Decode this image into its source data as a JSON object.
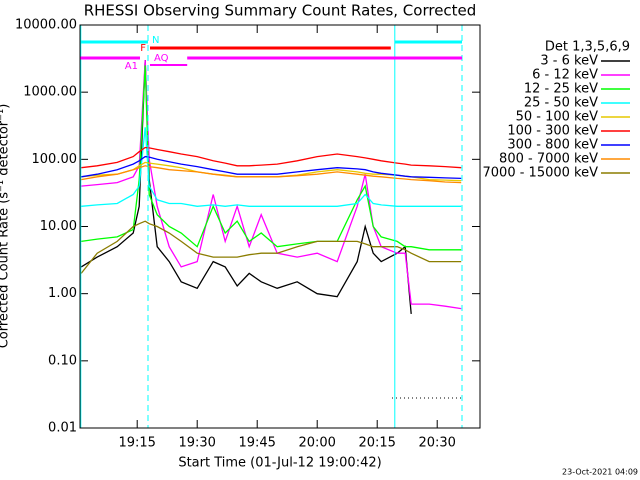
{
  "chart_data": {
    "type": "line",
    "title": "RHESSI Observing Summary Count Rates, Corrected",
    "x_label": "Start Time (01-Jul-12 19:00:42)",
    "y_label": "Corrected Count Rate (s⁻¹ detector⁻¹)",
    "legend_title": "Det 1,3,5,6,9",
    "timestamp": "23-Oct-2021 04:09",
    "log_y": true,
    "xlim": [
      0.7,
      100.7
    ],
    "xticks": [
      {
        "value": 15,
        "label": "19:15"
      },
      {
        "value": 30,
        "label": "19:30"
      },
      {
        "value": 45,
        "label": "19:45"
      },
      {
        "value": 60,
        "label": "20:00"
      },
      {
        "value": 75,
        "label": "20:15"
      },
      {
        "value": 90,
        "label": "20:30"
      }
    ],
    "ylim": [
      0.01,
      10000
    ],
    "yticks": [
      {
        "value": 0.01,
        "label": "0.01"
      },
      {
        "value": 0.1,
        "label": "0.10"
      },
      {
        "value": 1,
        "label": "1.00"
      },
      {
        "value": 10,
        "label": "10.00"
      },
      {
        "value": 100,
        "label": "100.00"
      },
      {
        "value": 1000,
        "label": "1000.00"
      },
      {
        "value": 10000,
        "label": "10000.00"
      }
    ],
    "x": [
      1,
      5,
      10,
      14,
      15.5,
      17,
      18,
      20,
      23,
      26,
      30,
      34,
      37,
      40,
      43,
      46,
      50,
      55,
      60,
      65,
      70,
      72,
      74,
      76,
      80,
      82,
      83.5,
      88,
      92,
      96
    ],
    "series": [
      {
        "name": "3 - 6 keV",
        "color": "#000000",
        "values": [
          2.5,
          3.5,
          5,
          8,
          20,
          3000,
          50,
          5,
          3,
          1.5,
          1.2,
          3,
          2.5,
          1.3,
          2,
          1.5,
          1.2,
          1.5,
          1.0,
          0.9,
          3,
          10,
          4,
          3,
          4,
          5,
          0.5,
          null,
          null,
          null
        ]
      },
      {
        "name": "6 - 12 keV",
        "color": "#ff00ff",
        "values": [
          40,
          42,
          45,
          55,
          80,
          3000,
          100,
          20,
          5,
          2.5,
          3,
          30,
          6,
          20,
          5,
          15,
          4,
          3.5,
          4,
          3,
          20,
          60,
          10,
          5,
          4,
          4,
          0.7,
          0.7,
          0.65,
          0.6
        ]
      },
      {
        "name": "12 - 25 keV",
        "color": "#00ff00",
        "values": [
          6,
          6.5,
          7,
          9,
          50,
          2500,
          30,
          15,
          10,
          8,
          5,
          20,
          8,
          12,
          6,
          8,
          5,
          5.5,
          6,
          6,
          25,
          40,
          10,
          7,
          6,
          5,
          5,
          4.5,
          4.5,
          4.5
        ]
      },
      {
        "name": "25 - 50 keV",
        "color": "#00ffff",
        "values": [
          20,
          21,
          22,
          30,
          40,
          300,
          40,
          25,
          22,
          22,
          20,
          21,
          20,
          21,
          20,
          20,
          20,
          20,
          20,
          20,
          22,
          30,
          22,
          21,
          20,
          20,
          20,
          20,
          20,
          20
        ]
      },
      {
        "name": "50 - 100 keV",
        "color": "#e6c800",
        "values": [
          55,
          58,
          60,
          70,
          80,
          90,
          88,
          85,
          80,
          75,
          65,
          60,
          58,
          55,
          55,
          55,
          55,
          58,
          65,
          70,
          65,
          62,
          60,
          60,
          58,
          56,
          55,
          50,
          49,
          48
        ]
      },
      {
        "name": "100 - 300 keV",
        "color": "#ff0000",
        "values": [
          75,
          80,
          90,
          110,
          130,
          150,
          148,
          140,
          130,
          120,
          110,
          95,
          88,
          80,
          80,
          82,
          85,
          95,
          110,
          120,
          110,
          105,
          100,
          95,
          88,
          85,
          82,
          80,
          78,
          75
        ]
      },
      {
        "name": "300 - 800 keV",
        "color": "#0000ff",
        "values": [
          55,
          60,
          70,
          85,
          95,
          110,
          108,
          100,
          92,
          85,
          78,
          70,
          65,
          60,
          60,
          60,
          60,
          65,
          70,
          75,
          72,
          70,
          65,
          62,
          58,
          56,
          55,
          54,
          53,
          52
        ]
      },
      {
        "name": "800 - 7000 keV",
        "color": "#ff8c00",
        "values": [
          50,
          55,
          60,
          70,
          75,
          80,
          78,
          75,
          70,
          68,
          65,
          60,
          57,
          55,
          55,
          55,
          55,
          57,
          60,
          65,
          60,
          58,
          56,
          55,
          52,
          51,
          50,
          48,
          46,
          45
        ]
      },
      {
        "name": "7000 - 15000 keV",
        "color": "#8b7d00",
        "values": [
          2,
          4,
          6,
          10,
          11,
          12,
          11,
          10,
          8,
          6,
          4,
          3.5,
          3.5,
          3.5,
          3.8,
          4,
          4,
          5,
          6,
          6,
          6,
          5.5,
          5,
          5,
          5,
          4.5,
          4,
          3,
          3,
          3
        ]
      }
    ],
    "flags": [
      {
        "label": "N",
        "color": "#00ffff",
        "ranges": [
          [
            0.7,
            17.7
          ],
          [
            79.4,
            96.2
          ]
        ]
      },
      {
        "label": "F",
        "color": "#ff0000",
        "ranges": [
          [
            18.2,
            78.4
          ]
        ]
      },
      {
        "label": "AQ",
        "color": "#ff00ff",
        "ranges": [
          [
            18.2,
            27.5
          ]
        ]
      },
      {
        "label": "A1",
        "color": "#ff00ff",
        "ranges": [
          [
            0.7,
            15.7
          ],
          [
            27.5,
            96.2
          ]
        ]
      }
    ],
    "vlines": [
      {
        "x": 0.9,
        "color": "#00ffff",
        "dashed": false
      },
      {
        "x": 17.7,
        "color": "#00ffff",
        "dashed": true
      },
      {
        "x": 79.4,
        "color": "#00ffff",
        "dashed": false
      },
      {
        "x": 96.2,
        "color": "#00ffff",
        "dashed": true
      }
    ]
  }
}
